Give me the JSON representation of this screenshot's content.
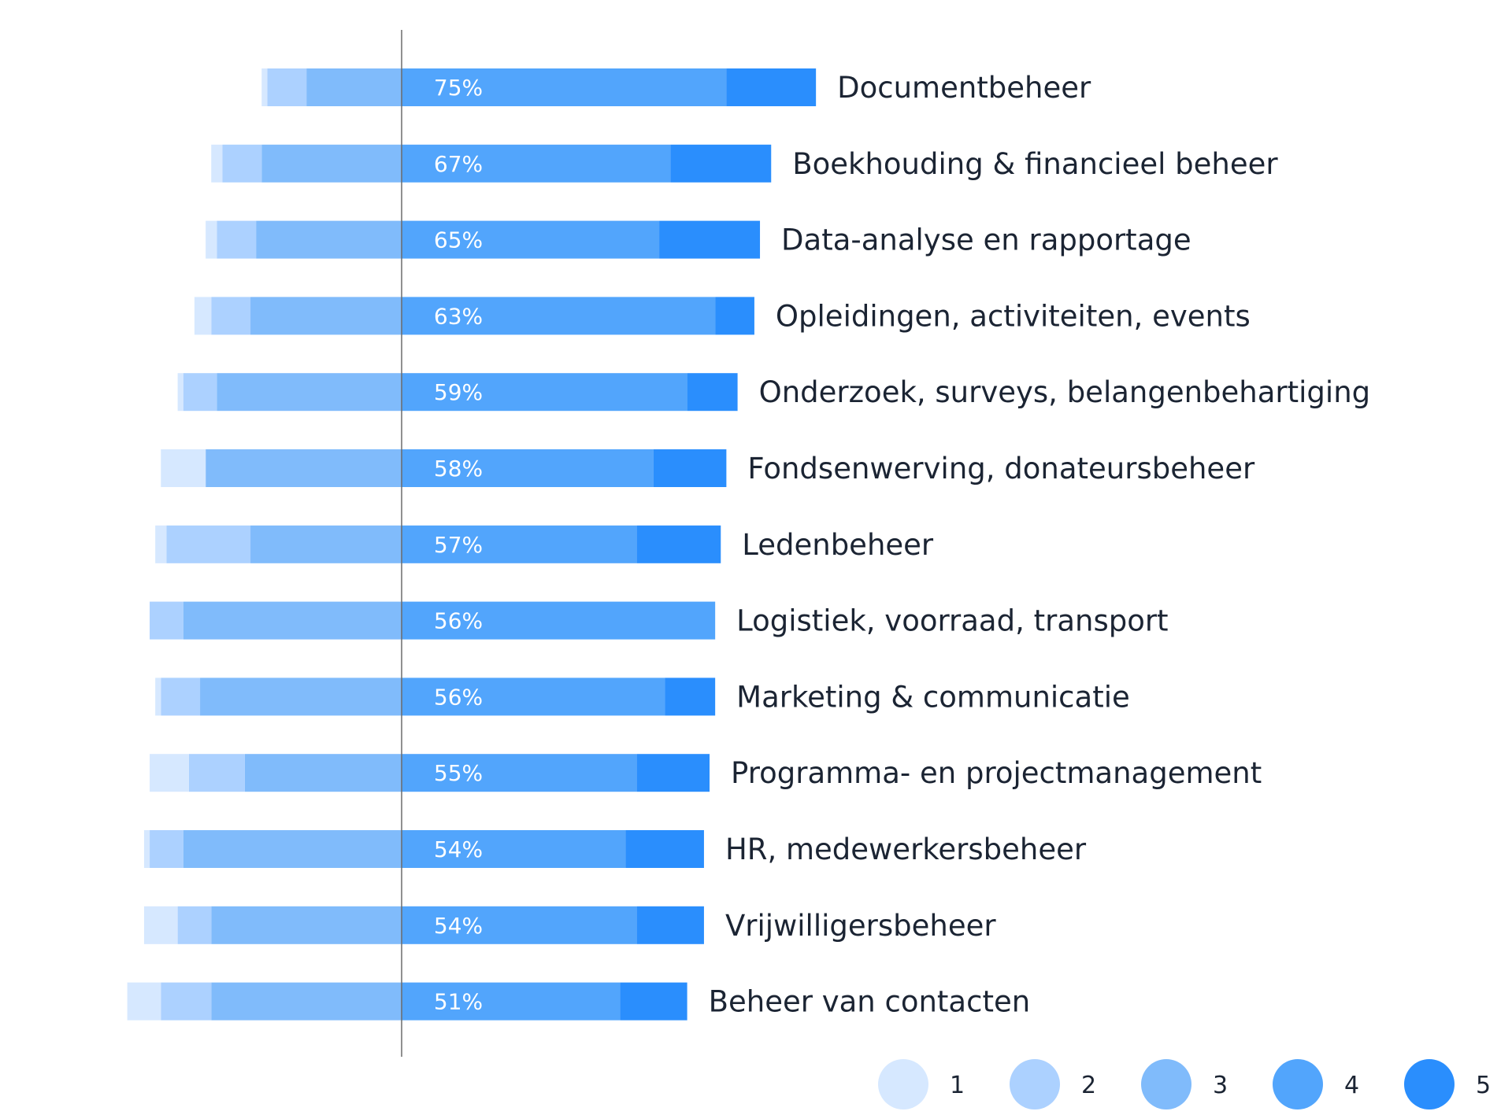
{
  "chart_data": {
    "type": "bar",
    "subtype": "diverging-stacked-horizontal",
    "title": "",
    "xlabel": "",
    "ylabel": "",
    "scale_levels": [
      "1",
      "2",
      "3",
      "4",
      "5"
    ],
    "colors": {
      "1": "#d6e8ff",
      "2": "#acd1ff",
      "3": "#80bbfb",
      "4": "#52a5fc",
      "5": "#2a8efd",
      "axis": "#6b6b6b",
      "label_text": "#1b2433",
      "pct_text": "#ffffff"
    },
    "legend_position": "bottom-right",
    "categories": [
      "Documentbeheer",
      "Boekhouding & financieel beheer",
      "Data-analyse en rapportage",
      "Opleidingen, activiteiten, events",
      "Onderzoek, surveys, belangenbehartiging",
      "Fondsenwerving, donateursbeheer",
      "Ledenbeheer",
      "Logistiek, voorraad, transport",
      "Marketing & communicatie",
      "Programma- en projectmanagement",
      "HR, medewerkersbeheer",
      "Vrijwilligersbeheer",
      "Beheer van contacten"
    ],
    "percent_labels": [
      "75%",
      "67%",
      "65%",
      "63%",
      "59%",
      "58%",
      "57%",
      "56%",
      "56%",
      "55%",
      "54%",
      "54%",
      "51%"
    ],
    "series": [
      {
        "name": "1",
        "values": [
          1,
          2,
          2,
          3,
          1,
          8,
          2,
          0,
          1,
          7,
          1,
          6,
          6
        ]
      },
      {
        "name": "2",
        "values": [
          7,
          7,
          7,
          7,
          6,
          0,
          15,
          6,
          7,
          10,
          6,
          6,
          9
        ]
      },
      {
        "name": "3",
        "values": [
          17,
          25,
          26,
          27,
          33,
          35,
          27,
          39,
          36,
          28,
          39,
          34,
          34
        ]
      },
      {
        "name": "4",
        "values": [
          58,
          48,
          46,
          56,
          51,
          45,
          42,
          56,
          47,
          42,
          40,
          42,
          39
        ]
      },
      {
        "name": "5",
        "values": [
          16,
          18,
          18,
          7,
          9,
          13,
          15,
          0,
          9,
          13,
          14,
          12,
          12
        ]
      }
    ]
  }
}
